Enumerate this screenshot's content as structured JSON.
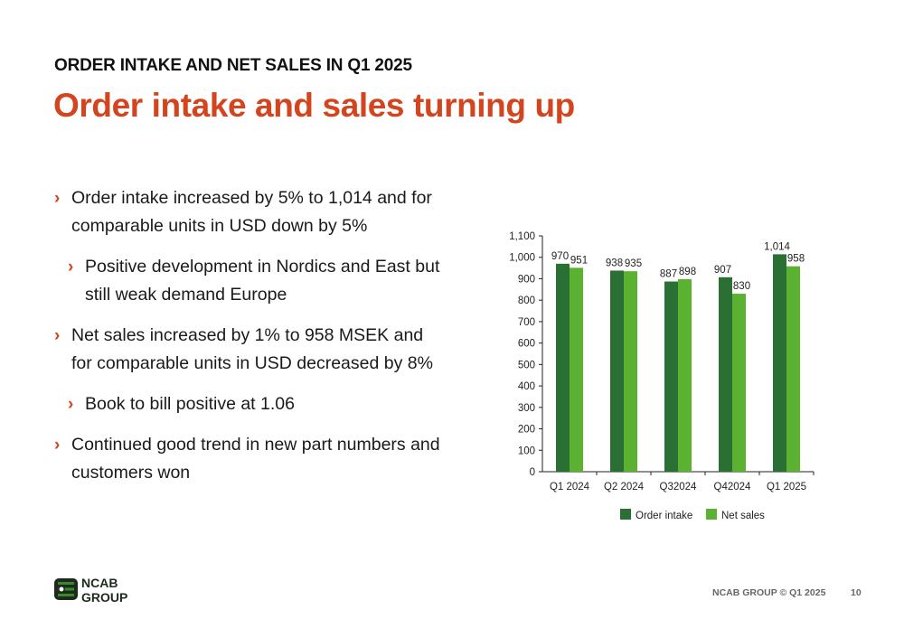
{
  "header": {
    "kicker": "ORDER INTAKE AND NET SALES IN Q1 2025",
    "title": "Order intake and sales turning up"
  },
  "bullets": [
    {
      "level": 1,
      "text": "Order intake increased by 5% to 1,014 and for comparable units in USD down by 5%"
    },
    {
      "level": 2,
      "text": "Positive development in Nordics and East but still weak demand Europe"
    },
    {
      "level": 1,
      "text": "Net sales increased by 1% to 958 MSEK and for comparable units in USD decreased by 8%"
    },
    {
      "level": 2,
      "text": "Book to bill positive at 1.06"
    },
    {
      "level": 1,
      "text": "Continued good trend in new part numbers and customers won"
    }
  ],
  "chart_data": {
    "type": "bar",
    "categories": [
      "Q1 2024",
      "Q2 2024",
      "Q32024",
      "Q42024",
      "Q1 2025"
    ],
    "series": [
      {
        "name": "Order intake",
        "values": [
          970,
          938,
          887,
          907,
          1014
        ],
        "labels": [
          "970",
          "938",
          "887",
          "907",
          "1,014"
        ],
        "color": "#2a6f33"
      },
      {
        "name": "Net sales",
        "values": [
          951,
          935,
          898,
          830,
          958
        ],
        "labels": [
          "951",
          "935",
          "898",
          "830",
          "958"
        ],
        "color": "#5bb130"
      }
    ],
    "ylim": [
      0,
      1100
    ],
    "yticks": [
      0,
      100,
      200,
      300,
      400,
      500,
      600,
      700,
      800,
      900,
      1000,
      1100
    ],
    "ytick_labels": [
      "0",
      "100",
      "200",
      "300",
      "400",
      "500",
      "600",
      "700",
      "800",
      "900",
      "1,000",
      "1,100"
    ],
    "grid": false,
    "legend_position": "bottom"
  },
  "footer": {
    "text": "NCAB GROUP © Q1 2025",
    "page": "10"
  },
  "logo": {
    "line1": "NCAB",
    "line2": "GROUP",
    "colors": {
      "dark": "#1e2a1e",
      "green": "#3a8a2c"
    }
  },
  "colors": {
    "accent": "#d2451e"
  }
}
